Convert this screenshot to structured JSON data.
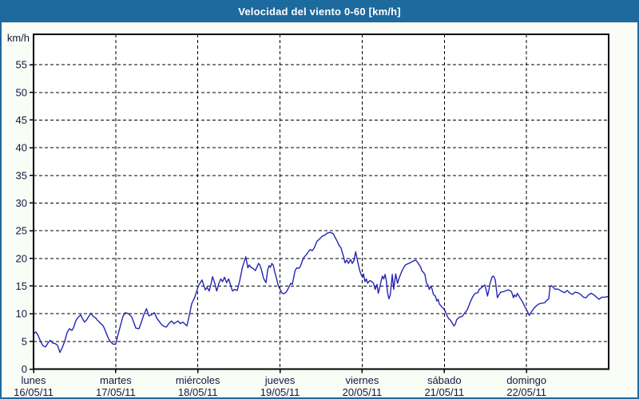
{
  "window": {
    "title": "Velocidad del viento 0-60 [km/h]"
  },
  "colors": {
    "accent_blue": "#1d6a9e",
    "line_blue": "#2525b5",
    "page_bg": "#fafcf6",
    "plot_bg": "#ffffff",
    "grid_color": "#000000",
    "label_color": "#16163e"
  },
  "chart_data": {
    "type": "line",
    "title": "Velocidad del viento 0-60 [km/h]",
    "ylabel": "km/h",
    "xlabel": "",
    "ylim": [
      0,
      60.5
    ],
    "y_ticks": [
      0,
      5,
      10,
      15,
      20,
      25,
      30,
      35,
      40,
      45,
      50,
      55
    ],
    "x_total_hours": 168,
    "grid": "dashed",
    "legend_position": "none",
    "x_days": [
      {
        "name": "lunes",
        "date": "16/05/11"
      },
      {
        "name": "martes",
        "date": "17/05/11"
      },
      {
        "name": "miércoles",
        "date": "18/05/11"
      },
      {
        "name": "jueves",
        "date": "19/05/11"
      },
      {
        "name": "viernes",
        "date": "20/05/11"
      },
      {
        "name": "sábado",
        "date": "21/05/11"
      },
      {
        "name": "domingo",
        "date": "22/05/11"
      }
    ],
    "series": [
      {
        "name": "Velocidad del viento",
        "unit": "km/h",
        "points": [
          [
            0,
            6.4
          ],
          [
            0.7,
            6.7
          ],
          [
            1.4,
            6.0
          ],
          [
            2.1,
            4.9
          ],
          [
            2.8,
            4.2
          ],
          [
            3.5,
            4.0
          ],
          [
            4.2,
            4.7
          ],
          [
            4.9,
            5.2
          ],
          [
            5.6,
            4.7
          ],
          [
            6.3,
            4.6
          ],
          [
            7.0,
            4.3
          ],
          [
            7.7,
            3.0
          ],
          [
            8.4,
            3.9
          ],
          [
            9.1,
            5.0
          ],
          [
            9.8,
            6.6
          ],
          [
            10.5,
            7.3
          ],
          [
            11.2,
            7.0
          ],
          [
            11.7,
            7.5
          ],
          [
            12.4,
            8.8
          ],
          [
            13.1,
            9.4
          ],
          [
            13.8,
            9.8
          ],
          [
            14.2,
            9.2
          ],
          [
            14.9,
            8.5
          ],
          [
            15.4,
            8.8
          ],
          [
            16.1,
            9.5
          ],
          [
            16.8,
            10.1
          ],
          [
            17.3,
            9.6
          ],
          [
            17.7,
            9.4
          ],
          [
            18.2,
            9.2
          ],
          [
            18.7,
            8.8
          ],
          [
            19.1,
            8.6
          ],
          [
            19.6,
            8.2
          ],
          [
            20.1,
            8.0
          ],
          [
            20.5,
            7.6
          ],
          [
            21.0,
            6.9
          ],
          [
            21.5,
            6.1
          ],
          [
            21.9,
            5.5
          ],
          [
            22.4,
            5.0
          ],
          [
            22.9,
            4.7
          ],
          [
            23.3,
            4.5
          ],
          [
            24.0,
            4.5
          ],
          [
            24.7,
            6.3
          ],
          [
            25.4,
            7.9
          ],
          [
            26.1,
            9.5
          ],
          [
            26.8,
            10.2
          ],
          [
            27.8,
            10.0
          ],
          [
            28.7,
            9.4
          ],
          [
            29.9,
            7.4
          ],
          [
            30.8,
            7.3
          ],
          [
            31.5,
            8.5
          ],
          [
            32.2,
            9.8
          ],
          [
            33.0,
            10.9
          ],
          [
            33.7,
            9.6
          ],
          [
            34.4,
            9.8
          ],
          [
            35.3,
            10.2
          ],
          [
            36.0,
            9.2
          ],
          [
            37.2,
            8.2
          ],
          [
            38.1,
            7.7
          ],
          [
            38.8,
            7.6
          ],
          [
            39.5,
            8.2
          ],
          [
            40.3,
            8.7
          ],
          [
            41.0,
            8.2
          ],
          [
            42.2,
            8.7
          ],
          [
            42.9,
            8.2
          ],
          [
            43.6,
            8.5
          ],
          [
            44.8,
            7.8
          ],
          [
            45.5,
            9.7
          ],
          [
            46.2,
            11.8
          ],
          [
            47.1,
            13.0
          ],
          [
            47.6,
            14.0
          ],
          [
            48.2,
            15.1
          ],
          [
            49.2,
            16.1
          ],
          [
            50.2,
            14.3
          ],
          [
            50.7,
            14.8
          ],
          [
            51.3,
            14.1
          ],
          [
            51.9,
            15.5
          ],
          [
            52.3,
            16.7
          ],
          [
            52.9,
            15.6
          ],
          [
            53.5,
            14.1
          ],
          [
            54.1,
            15.4
          ],
          [
            54.7,
            16.3
          ],
          [
            55.2,
            15.8
          ],
          [
            55.8,
            16.6
          ],
          [
            56.4,
            15.6
          ],
          [
            57.0,
            16.3
          ],
          [
            57.5,
            15.3
          ],
          [
            58.1,
            14.1
          ],
          [
            58.7,
            14.4
          ],
          [
            59.5,
            14.2
          ],
          [
            60.2,
            15.9
          ],
          [
            61.0,
            18.3
          ],
          [
            62.0,
            20.3
          ],
          [
            62.6,
            18.3
          ],
          [
            63.0,
            18.8
          ],
          [
            63.5,
            18.4
          ],
          [
            64.1,
            18.2
          ],
          [
            64.8,
            17.8
          ],
          [
            65.3,
            18.5
          ],
          [
            65.7,
            19.1
          ],
          [
            66.1,
            18.8
          ],
          [
            66.6,
            17.9
          ],
          [
            67.2,
            16.4
          ],
          [
            67.9,
            15.6
          ],
          [
            68.4,
            17.9
          ],
          [
            68.8,
            18.7
          ],
          [
            69.2,
            18.4
          ],
          [
            69.6,
            19.1
          ],
          [
            70.0,
            18.8
          ],
          [
            70.5,
            17.5
          ],
          [
            71.1,
            16.1
          ],
          [
            71.5,
            15.1
          ],
          [
            71.9,
            14.6
          ],
          [
            72.5,
            13.8
          ],
          [
            73.0,
            13.6
          ],
          [
            73.8,
            13.9
          ],
          [
            74.6,
            14.8
          ],
          [
            75.1,
            15.5
          ],
          [
            75.6,
            15.3
          ],
          [
            76.4,
            17.8
          ],
          [
            76.9,
            18.3
          ],
          [
            77.5,
            18.2
          ],
          [
            77.9,
            18.5
          ],
          [
            78.5,
            19.5
          ],
          [
            79.0,
            20.2
          ],
          [
            79.6,
            20.6
          ],
          [
            80.3,
            21.2
          ],
          [
            80.8,
            21.6
          ],
          [
            81.4,
            21.4
          ],
          [
            82.0,
            21.9
          ],
          [
            82.8,
            23.1
          ],
          [
            83.5,
            23.5
          ],
          [
            84.3,
            24.0
          ],
          [
            85.1,
            24.2
          ],
          [
            85.9,
            24.6
          ],
          [
            86.5,
            24.7
          ],
          [
            87.5,
            24.5
          ],
          [
            88.1,
            23.8
          ],
          [
            88.7,
            23.1
          ],
          [
            89.2,
            22.4
          ],
          [
            89.8,
            21.9
          ],
          [
            90.5,
            20.4
          ],
          [
            91.0,
            19.2
          ],
          [
            91.5,
            19.7
          ],
          [
            92.0,
            19.1
          ],
          [
            92.6,
            19.8
          ],
          [
            93.1,
            19.1
          ],
          [
            93.6,
            19.6
          ],
          [
            94.1,
            21.2
          ],
          [
            94.5,
            20.0
          ],
          [
            94.9,
            18.8
          ],
          [
            95.3,
            17.8
          ],
          [
            95.7,
            17.1
          ],
          [
            96.1,
            16.6
          ],
          [
            96.4,
            17.2
          ],
          [
            96.8,
            15.8
          ],
          [
            97.2,
            16.3
          ],
          [
            97.6,
            15.5
          ],
          [
            98.2,
            16.0
          ],
          [
            98.8,
            15.8
          ],
          [
            99.3,
            15.5
          ],
          [
            99.8,
            14.4
          ],
          [
            100.3,
            15.3
          ],
          [
            100.7,
            13.7
          ],
          [
            101.1,
            14.7
          ],
          [
            101.5,
            15.8
          ],
          [
            101.9,
            16.8
          ],
          [
            102.3,
            16.3
          ],
          [
            102.7,
            17.1
          ],
          [
            103.1,
            15.8
          ],
          [
            103.4,
            13.9
          ],
          [
            103.8,
            12.7
          ],
          [
            104.2,
            13.4
          ],
          [
            104.8,
            17.1
          ],
          [
            105.2,
            14.4
          ],
          [
            105.8,
            17.2
          ],
          [
            106.3,
            15.5
          ],
          [
            106.9,
            16.6
          ],
          [
            107.6,
            17.7
          ],
          [
            108.1,
            18.3
          ],
          [
            108.6,
            18.8
          ],
          [
            109.2,
            19.0
          ],
          [
            110.0,
            19.2
          ],
          [
            110.8,
            19.5
          ],
          [
            111.6,
            19.7
          ],
          [
            112.2,
            19.3
          ],
          [
            112.7,
            18.8
          ],
          [
            113.1,
            18.4
          ],
          [
            113.5,
            17.7
          ],
          [
            113.9,
            17.5
          ],
          [
            114.3,
            17.1
          ],
          [
            114.8,
            15.5
          ],
          [
            115.3,
            15.1
          ],
          [
            115.6,
            14.4
          ],
          [
            116.1,
            15.0
          ],
          [
            116.4,
            14.5
          ],
          [
            116.8,
            13.5
          ],
          [
            117.4,
            13.2
          ],
          [
            117.8,
            12.3
          ],
          [
            118.2,
            12.6
          ],
          [
            118.5,
            11.8
          ],
          [
            118.9,
            11.5
          ],
          [
            119.3,
            11.2
          ],
          [
            120.1,
            10.7
          ],
          [
            120.5,
            10.1
          ],
          [
            120.9,
            9.5
          ],
          [
            121.3,
            9.1
          ],
          [
            121.7,
            8.9
          ],
          [
            122.0,
            8.6
          ],
          [
            122.4,
            8.2
          ],
          [
            122.8,
            7.8
          ],
          [
            123.2,
            8.1
          ],
          [
            123.6,
            8.9
          ],
          [
            124.4,
            9.4
          ],
          [
            125.2,
            9.5
          ],
          [
            125.9,
            10.1
          ],
          [
            126.7,
            10.7
          ],
          [
            127.5,
            12.0
          ],
          [
            128.3,
            13.1
          ],
          [
            129.0,
            13.7
          ],
          [
            129.8,
            13.8
          ],
          [
            130.2,
            14.4
          ],
          [
            131.0,
            14.8
          ],
          [
            131.8,
            15.2
          ],
          [
            132.4,
            13.9
          ],
          [
            132.6,
            13.2
          ],
          [
            133.0,
            14.2
          ],
          [
            133.4,
            15.6
          ],
          [
            134.0,
            16.7
          ],
          [
            134.4,
            16.8
          ],
          [
            134.9,
            16.1
          ],
          [
            135.5,
            12.9
          ],
          [
            136.0,
            13.5
          ],
          [
            136.5,
            13.9
          ],
          [
            137.3,
            14.0
          ],
          [
            138.1,
            14.2
          ],
          [
            138.8,
            14.3
          ],
          [
            139.6,
            14.0
          ],
          [
            140.2,
            12.9
          ],
          [
            140.5,
            13.4
          ],
          [
            141.0,
            13.1
          ],
          [
            141.3,
            13.7
          ],
          [
            141.9,
            13.1
          ],
          [
            142.7,
            12.3
          ],
          [
            143.5,
            11.3
          ],
          [
            144.2,
            10.5
          ],
          [
            144.8,
            9.7
          ],
          [
            145.4,
            10.3
          ],
          [
            146.2,
            11.0
          ],
          [
            147.0,
            11.5
          ],
          [
            147.7,
            11.8
          ],
          [
            148.5,
            11.9
          ],
          [
            149.3,
            12.0
          ],
          [
            150.1,
            12.5
          ],
          [
            150.5,
            12.7
          ],
          [
            150.9,
            14.9
          ],
          [
            151.2,
            15.1
          ],
          [
            151.8,
            14.8
          ],
          [
            152.4,
            14.4
          ],
          [
            153.0,
            14.5
          ],
          [
            153.6,
            14.3
          ],
          [
            154.4,
            14.0
          ],
          [
            155.1,
            13.8
          ],
          [
            155.9,
            14.2
          ],
          [
            156.7,
            13.7
          ],
          [
            157.5,
            13.5
          ],
          [
            158.2,
            13.9
          ],
          [
            159.0,
            13.8
          ],
          [
            159.8,
            13.5
          ],
          [
            160.6,
            13.0
          ],
          [
            161.4,
            12.9
          ],
          [
            162.1,
            13.4
          ],
          [
            162.9,
            13.7
          ],
          [
            163.7,
            13.4
          ],
          [
            164.5,
            13.0
          ],
          [
            165.2,
            12.6
          ],
          [
            166.0,
            13.0
          ],
          [
            166.8,
            13.0
          ],
          [
            167.8,
            13.1
          ]
        ]
      }
    ]
  }
}
